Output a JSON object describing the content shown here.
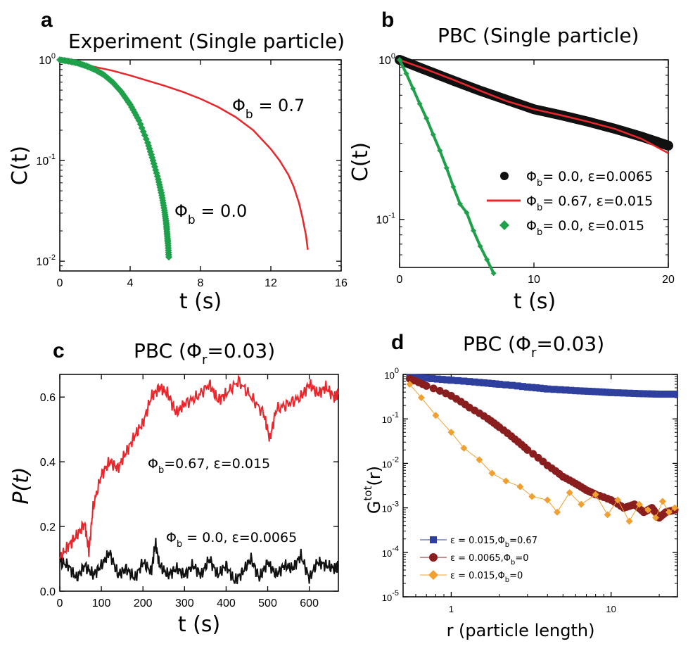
{
  "chart_data": [
    {
      "id": "a",
      "panel_label": "a",
      "type": "line",
      "title": "Experiment (Single particle)",
      "xlabel": "t (s)",
      "ylabel": "C(t)",
      "xscale": "linear",
      "yscale": "log",
      "xlim": [
        0,
        16
      ],
      "ylim": [
        0.008,
        1
      ],
      "xticks": [
        0,
        4,
        8,
        12,
        16
      ],
      "xtick_labels": [
        "0",
        "4",
        "8",
        "12",
        "16"
      ],
      "yticks": [
        1,
        0.1,
        0.01
      ],
      "ytick_labels": [
        [
          "10",
          "0"
        ],
        [
          "10",
          "-1"
        ],
        [
          "10",
          "-2"
        ]
      ],
      "series": [
        {
          "name": "Φb = 0.7",
          "label_main": "Φ",
          "label_sub": "b",
          "label_tail": " = 0.7",
          "style": "line",
          "color": "#e8262b",
          "x": [
            0,
            1,
            2,
            3,
            4,
            5,
            6,
            7,
            8,
            9,
            10,
            11,
            12,
            12.5,
            13,
            13.3,
            13.6,
            13.8,
            14.0,
            14.1
          ],
          "y": [
            1.0,
            0.93,
            0.85,
            0.78,
            0.7,
            0.62,
            0.55,
            0.48,
            0.41,
            0.34,
            0.27,
            0.2,
            0.13,
            0.1,
            0.072,
            0.055,
            0.038,
            0.027,
            0.018,
            0.013
          ]
        },
        {
          "name": "Φb = 0.0",
          "label_main": "Φ",
          "label_sub": "b",
          "label_tail": " = 0.0",
          "style": "diamond",
          "color": "#1fa04a",
          "x": [
            0,
            0.5,
            1,
            1.5,
            2,
            2.5,
            3,
            3.5,
            4,
            4.5,
            5,
            5.3,
            5.6,
            5.8,
            5.95,
            6.05,
            6.1,
            6.15,
            6.2
          ],
          "y": [
            1.0,
            0.97,
            0.93,
            0.87,
            0.8,
            0.71,
            0.6,
            0.48,
            0.36,
            0.25,
            0.15,
            0.1,
            0.065,
            0.045,
            0.032,
            0.024,
            0.019,
            0.015,
            0.011
          ]
        }
      ]
    },
    {
      "id": "b",
      "panel_label": "b",
      "type": "line",
      "title": "PBC (Single particle)",
      "xlabel": "t (s)",
      "ylabel": "C(t)",
      "xscale": "linear",
      "yscale": "log",
      "xlim": [
        0,
        20
      ],
      "ylim": [
        0.05,
        1
      ],
      "xticks": [
        0,
        10,
        20
      ],
      "xtick_labels": [
        "0",
        "10",
        "20"
      ],
      "yticks": [
        1,
        0.1
      ],
      "ytick_labels": [
        [
          "10",
          "0"
        ],
        [
          "10",
          "-1"
        ]
      ],
      "legend": "right",
      "series": [
        {
          "name": "Φb=0.0, ε=0.0065",
          "legend_main": "Φ",
          "legend_sub": "b",
          "legend_tail": "= 0.0, ε=0.0065",
          "style": "dot",
          "color": "#111111",
          "x": [
            0,
            2,
            4,
            6,
            8,
            10,
            12,
            14,
            16,
            18,
            20
          ],
          "y": [
            1.0,
            0.86,
            0.74,
            0.64,
            0.56,
            0.49,
            0.45,
            0.41,
            0.37,
            0.33,
            0.29
          ]
        },
        {
          "name": "Φb=0.67, ε=0.015",
          "legend_main": "Φ",
          "legend_sub": "b",
          "legend_tail": "= 0.67, ε=0.015",
          "style": "line",
          "color": "#e8262b",
          "x": [
            0,
            2,
            4,
            6,
            8,
            10,
            12,
            14,
            16,
            18,
            20
          ],
          "y": [
            1.0,
            0.87,
            0.75,
            0.64,
            0.55,
            0.49,
            0.45,
            0.41,
            0.37,
            0.32,
            0.26
          ]
        },
        {
          "name": "Φb=0.0, ε=0.015",
          "legend_main": "Φ",
          "legend_sub": "b",
          "legend_tail": "= 0.0, ε=0.015",
          "style": "diamond-line",
          "color": "#1fa04a",
          "x": [
            0,
            0.5,
            1,
            1.5,
            2,
            2.5,
            3,
            3.5,
            4,
            4.5,
            5,
            5.5,
            6,
            6.5,
            7
          ],
          "y": [
            1.0,
            0.82,
            0.66,
            0.53,
            0.43,
            0.34,
            0.27,
            0.21,
            0.16,
            0.125,
            0.11,
            0.085,
            0.068,
            0.056,
            0.046
          ]
        }
      ]
    },
    {
      "id": "c",
      "panel_label": "c",
      "type": "line",
      "title_main": "PBC (Φ",
      "title_sub": "r",
      "title_tail": "=0.03)",
      "xlabel": "t (s)",
      "ylabel": "P(t)",
      "xscale": "linear",
      "yscale": "linear",
      "xlim": [
        0,
        670
      ],
      "ylim": [
        0,
        0.67
      ],
      "xticks": [
        0,
        100,
        200,
        300,
        400,
        500,
        600
      ],
      "xtick_labels": [
        "0",
        "100",
        "200",
        "300",
        "400",
        "500",
        "600"
      ],
      "yticks": [
        0,
        0.2,
        0.4,
        0.6
      ],
      "ytick_labels": [
        "0.0",
        "0.2",
        "0.4",
        "0.6"
      ],
      "series": [
        {
          "name": "Φb=0.67, ε=0.015",
          "label_main": "Φ",
          "label_sub": "b",
          "label_tail": "=0.67, ε=0.015",
          "style": "line",
          "color": "#e8262b",
          "x": [
            0,
            20,
            40,
            60,
            70,
            80,
            100,
            120,
            140,
            160,
            180,
            200,
            220,
            240,
            260,
            280,
            300,
            330,
            360,
            380,
            400,
            430,
            460,
            490,
            505,
            520,
            550,
            580,
            600,
            620,
            640,
            660,
            670
          ],
          "y": [
            0.1,
            0.14,
            0.17,
            0.21,
            0.12,
            0.26,
            0.36,
            0.4,
            0.38,
            0.43,
            0.48,
            0.52,
            0.6,
            0.63,
            0.61,
            0.55,
            0.58,
            0.6,
            0.64,
            0.59,
            0.61,
            0.65,
            0.6,
            0.55,
            0.47,
            0.56,
            0.58,
            0.6,
            0.64,
            0.61,
            0.63,
            0.6,
            0.61
          ]
        },
        {
          "name": "Φb = 0.0, ε=0.0065",
          "label_main": "Φ",
          "label_sub": "b",
          "label_tail": " = 0.0, ε=0.0065",
          "style": "line",
          "color": "#111111",
          "x": [
            0,
            20,
            40,
            60,
            80,
            100,
            120,
            140,
            160,
            180,
            200,
            220,
            230,
            240,
            260,
            280,
            300,
            320,
            340,
            360,
            380,
            400,
            420,
            440,
            460,
            480,
            500,
            520,
            540,
            560,
            580,
            600,
            620,
            640,
            660,
            670
          ],
          "y": [
            0.09,
            0.08,
            0.04,
            0.08,
            0.05,
            0.08,
            0.12,
            0.05,
            0.07,
            0.04,
            0.09,
            0.06,
            0.15,
            0.08,
            0.05,
            0.07,
            0.05,
            0.08,
            0.05,
            0.1,
            0.05,
            0.08,
            0.03,
            0.06,
            0.1,
            0.04,
            0.09,
            0.05,
            0.08,
            0.07,
            0.11,
            0.04,
            0.09,
            0.08,
            0.07,
            0.08
          ]
        }
      ]
    },
    {
      "id": "d",
      "panel_label": "d",
      "type": "scatter",
      "title_main": "PBC (Φ",
      "title_sub": "r",
      "title_tail": "=0.03)",
      "xlabel": "r (particle length)",
      "ylabel_main": "G",
      "ylabel_sup": "tot",
      "ylabel_tail": "(r)",
      "xscale": "log",
      "yscale": "log",
      "xlim": [
        0.5,
        26
      ],
      "ylim": [
        1e-05,
        1
      ],
      "xticks": [
        1,
        10
      ],
      "xtick_labels": [
        "1",
        "10"
      ],
      "yticks": [
        1,
        0.1,
        0.01,
        0.001,
        0.0001,
        1e-05
      ],
      "ytick_labels": [
        [
          "10",
          "0"
        ],
        [
          "10",
          "-1"
        ],
        [
          "10",
          "-2"
        ],
        [
          "10",
          "-3"
        ],
        [
          "10",
          "-4"
        ],
        [
          "10",
          "-5"
        ]
      ],
      "legend": "bottom-left",
      "series": [
        {
          "name": "ε = 0.015,Φb=0.67",
          "legend_main": "ε = 0.015,Φ",
          "legend_sub": "b",
          "legend_tail": "=0.67",
          "style": "square",
          "color": "#2e3f9e",
          "x": [
            0.55,
            0.7,
            1,
            1.5,
            2,
            3,
            4,
            6,
            8,
            10,
            15,
            20,
            25
          ],
          "y": [
            0.85,
            0.82,
            0.74,
            0.66,
            0.6,
            0.52,
            0.47,
            0.43,
            0.41,
            0.39,
            0.37,
            0.36,
            0.36
          ]
        },
        {
          "name": "ε = 0.0065,Φb=0",
          "legend_main": "ε = 0.0065,Φ",
          "legend_sub": "b",
          "legend_tail": "=0",
          "style": "circle",
          "color": "#8a1e1e",
          "x": [
            0.55,
            0.7,
            1,
            1.3,
            1.7,
            2,
            2.5,
            3,
            4,
            5,
            6,
            7,
            8,
            10,
            12,
            14,
            16,
            18,
            20,
            22,
            25
          ],
          "y": [
            0.8,
            0.55,
            0.33,
            0.18,
            0.1,
            0.065,
            0.035,
            0.02,
            0.009,
            0.005,
            0.0035,
            0.0025,
            0.002,
            0.0015,
            0.001,
            0.0012,
            0.0008,
            0.001,
            0.0006,
            0.0008,
            0.0009
          ]
        },
        {
          "name": "ε = 0.015,Φb=0",
          "legend_main": "ε = 0.015,Φ",
          "legend_sub": "b",
          "legend_tail": "=0",
          "style": "diamond",
          "color": "#f0a030",
          "x": [
            0.55,
            0.65,
            0.8,
            1,
            1.2,
            1.5,
            1.8,
            2.2,
            2.7,
            3.2,
            4,
            4.6,
            5.5,
            6.5,
            8,
            9.5,
            11,
            13,
            15,
            17,
            19,
            21,
            23,
            25
          ],
          "y": [
            0.6,
            0.3,
            0.12,
            0.05,
            0.022,
            0.012,
            0.006,
            0.004,
            0.003,
            0.0018,
            0.0015,
            0.0008,
            0.0022,
            0.0012,
            0.002,
            0.0007,
            0.0015,
            0.0005,
            0.0012,
            0.0009,
            0.0006,
            0.0014,
            0.0008,
            0.001
          ]
        }
      ]
    }
  ]
}
